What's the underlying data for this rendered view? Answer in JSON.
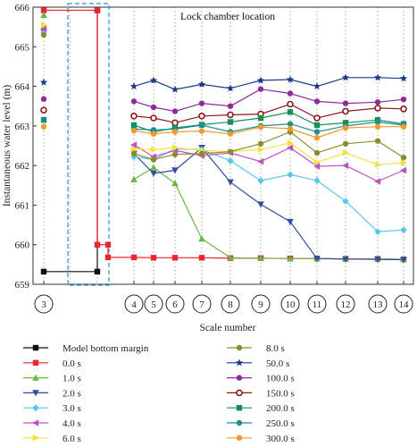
{
  "chart_data": {
    "type": "line",
    "title": "",
    "xlabel": "Scale number",
    "ylabel": "Instantaneous water level (m)",
    "annotation": "Lock chamber location",
    "ylim": [
      659,
      666
    ],
    "yticks": [
      659,
      660,
      661,
      662,
      663,
      664,
      665,
      666
    ],
    "x_positions": [
      "3",
      "A",
      "B",
      "4",
      "5",
      "6",
      "7",
      "8",
      "9",
      "10",
      "11",
      "12",
      "13",
      "14"
    ],
    "x_tick_labels": [
      "3",
      "4",
      "5",
      "6",
      "7",
      "8",
      "9",
      "10",
      "11",
      "12",
      "13",
      "14"
    ],
    "grid": "vertical dotted",
    "legend_position": "below",
    "series": [
      {
        "name": "Model bottom margin",
        "color": "#111111",
        "marker": "square",
        "points": [
          [
            "3",
            659.32
          ],
          [
            "B",
            659.32
          ],
          [
            "B",
            665.92
          ]
        ]
      },
      {
        "name": "0.0 s",
        "color": "#e8262b",
        "marker": "square",
        "points": [
          [
            "3",
            665.92
          ],
          [
            "B",
            665.92
          ],
          [
            "B",
            660.0
          ],
          [
            "C",
            660.0
          ],
          [
            "C",
            659.68
          ],
          [
            "4",
            659.68
          ],
          [
            "5",
            659.67
          ],
          [
            "6",
            659.67
          ],
          [
            "7",
            659.67
          ],
          [
            "8",
            659.66
          ],
          [
            "9",
            659.66
          ],
          [
            "10",
            659.65
          ],
          [
            "11",
            659.65
          ],
          [
            "12",
            659.64
          ],
          [
            "13",
            659.64
          ],
          [
            "14",
            659.63
          ]
        ]
      },
      {
        "name": "1.0 s",
        "color": "#6ab547",
        "marker": "triangle-up",
        "points": [
          [
            "3",
            665.8
          ],
          [
            "4",
            661.65
          ],
          [
            "5",
            661.95
          ],
          [
            "6",
            661.55
          ],
          [
            "7",
            660.15
          ],
          [
            "8",
            659.67
          ],
          [
            "9",
            659.66
          ],
          [
            "10",
            659.65
          ],
          [
            "11",
            659.65
          ],
          [
            "12",
            659.64
          ],
          [
            "13",
            659.64
          ],
          [
            "14",
            659.63
          ]
        ]
      },
      {
        "name": "2.0 s",
        "color": "#2f4f9a",
        "marker": "triangle-down",
        "points": [
          [
            "3",
            665.38
          ],
          [
            "4",
            662.3
          ],
          [
            "5",
            661.8
          ],
          [
            "6",
            661.88
          ],
          [
            "7",
            662.45
          ],
          [
            "8",
            661.58
          ],
          [
            "9",
            661.02
          ],
          [
            "10",
            660.58
          ],
          [
            "11",
            659.65
          ],
          [
            "12",
            659.64
          ],
          [
            "13",
            659.63
          ],
          [
            "14",
            659.62
          ]
        ]
      },
      {
        "name": "3.0 s",
        "color": "#5bc8e6",
        "marker": "diamond",
        "points": [
          [
            "3",
            665.35
          ],
          [
            "4",
            662.22
          ],
          [
            "5",
            662.15
          ],
          [
            "6",
            662.42
          ],
          [
            "7",
            662.4
          ],
          [
            "8",
            662.12
          ],
          [
            "9",
            661.62
          ],
          [
            "10",
            661.77
          ],
          [
            "11",
            661.62
          ],
          [
            "12",
            661.1
          ],
          [
            "13",
            660.33
          ],
          [
            "14",
            660.37
          ]
        ]
      },
      {
        "name": "4.0 s",
        "color": "#c052c0",
        "marker": "triangle-left",
        "points": [
          [
            "3",
            665.45
          ],
          [
            "4",
            662.52
          ],
          [
            "5",
            662.22
          ],
          [
            "6",
            662.38
          ],
          [
            "7",
            662.25
          ],
          [
            "8",
            662.32
          ],
          [
            "9",
            662.1
          ],
          [
            "10",
            662.45
          ],
          [
            "11",
            661.98
          ],
          [
            "12",
            662.0
          ],
          [
            "13",
            661.6
          ],
          [
            "14",
            661.88
          ]
        ]
      },
      {
        "name": "6.0 s",
        "color": "#f4e23c",
        "marker": "triangle-right",
        "points": [
          [
            "3",
            665.55
          ],
          [
            "4",
            662.42
          ],
          [
            "5",
            662.4
          ],
          [
            "6",
            662.45
          ],
          [
            "7",
            662.38
          ],
          [
            "8",
            662.35
          ],
          [
            "9",
            662.4
          ],
          [
            "10",
            662.57
          ],
          [
            "11",
            662.08
          ],
          [
            "12",
            662.32
          ],
          [
            "13",
            662.02
          ],
          [
            "14",
            662.07
          ]
        ]
      },
      {
        "name": "8.0 s",
        "color": "#8c8c2e",
        "marker": "circle",
        "points": [
          [
            "3",
            665.3
          ],
          [
            "4",
            662.3
          ],
          [
            "5",
            662.15
          ],
          [
            "6",
            662.28
          ],
          [
            "7",
            662.3
          ],
          [
            "8",
            662.35
          ],
          [
            "9",
            662.55
          ],
          [
            "10",
            662.85
          ],
          [
            "11",
            662.32
          ],
          [
            "12",
            662.55
          ],
          [
            "13",
            662.62
          ],
          [
            "14",
            662.2
          ]
        ]
      },
      {
        "name": "50.0 s",
        "color": "#1f3a8a",
        "marker": "star",
        "points": [
          [
            "3",
            664.1
          ],
          [
            "4",
            664.0
          ],
          [
            "5",
            664.15
          ],
          [
            "6",
            663.92
          ],
          [
            "7",
            664.05
          ],
          [
            "8",
            663.95
          ],
          [
            "9",
            664.15
          ],
          [
            "10",
            664.17
          ],
          [
            "11",
            664.0
          ],
          [
            "12",
            664.22
          ],
          [
            "13",
            664.22
          ],
          [
            "14",
            664.2
          ]
        ]
      },
      {
        "name": "100.0 s",
        "color": "#8e2a9a",
        "marker": "circle",
        "points": [
          [
            "3",
            663.68
          ],
          [
            "4",
            663.62
          ],
          [
            "5",
            663.47
          ],
          [
            "6",
            663.37
          ],
          [
            "7",
            663.57
          ],
          [
            "8",
            663.5
          ],
          [
            "9",
            663.93
          ],
          [
            "10",
            663.82
          ],
          [
            "11",
            663.62
          ],
          [
            "12",
            663.57
          ],
          [
            "13",
            663.6
          ],
          [
            "14",
            663.67
          ]
        ]
      },
      {
        "name": "150.0 s",
        "color": "#8b1a1a",
        "marker": "circle-open",
        "points": [
          [
            "3",
            663.4
          ],
          [
            "4",
            663.25
          ],
          [
            "5",
            663.2
          ],
          [
            "6",
            663.08
          ],
          [
            "7",
            663.25
          ],
          [
            "8",
            663.28
          ],
          [
            "9",
            663.3
          ],
          [
            "10",
            663.55
          ],
          [
            "11",
            663.2
          ],
          [
            "12",
            663.37
          ],
          [
            "13",
            663.45
          ],
          [
            "14",
            663.43
          ]
        ]
      },
      {
        "name": "200.0 s",
        "color": "#148f5a",
        "marker": "square",
        "points": [
          [
            "3",
            663.15
          ],
          [
            "4",
            663.02
          ],
          [
            "5",
            662.85
          ],
          [
            "6",
            662.95
          ],
          [
            "7",
            663.03
          ],
          [
            "8",
            663.1
          ],
          [
            "9",
            663.2
          ],
          [
            "10",
            663.35
          ],
          [
            "11",
            663.02
          ],
          [
            "12",
            663.08
          ],
          [
            "13",
            663.15
          ],
          [
            "14",
            663.05
          ]
        ]
      },
      {
        "name": "250.0 s",
        "color": "#1f8e8e",
        "marker": "circle",
        "points": [
          [
            "3",
            663.15
          ],
          [
            "4",
            662.92
          ],
          [
            "5",
            662.9
          ],
          [
            "6",
            662.92
          ],
          [
            "7",
            663.02
          ],
          [
            "8",
            662.85
          ],
          [
            "9",
            663.0
          ],
          [
            "10",
            663.05
          ],
          [
            "11",
            662.85
          ],
          [
            "12",
            663.0
          ],
          [
            "13",
            663.1
          ],
          [
            "14",
            663.02
          ]
        ]
      },
      {
        "name": "300.0 s",
        "color": "#f39a2b",
        "marker": "circle",
        "points": [
          [
            "3",
            662.98
          ],
          [
            "4",
            662.88
          ],
          [
            "5",
            662.8
          ],
          [
            "6",
            662.85
          ],
          [
            "7",
            662.87
          ],
          [
            "8",
            662.8
          ],
          [
            "9",
            662.97
          ],
          [
            "10",
            662.93
          ],
          [
            "11",
            662.7
          ],
          [
            "12",
            662.95
          ],
          [
            "13",
            662.98
          ],
          [
            "14",
            662.98
          ]
        ]
      }
    ]
  }
}
